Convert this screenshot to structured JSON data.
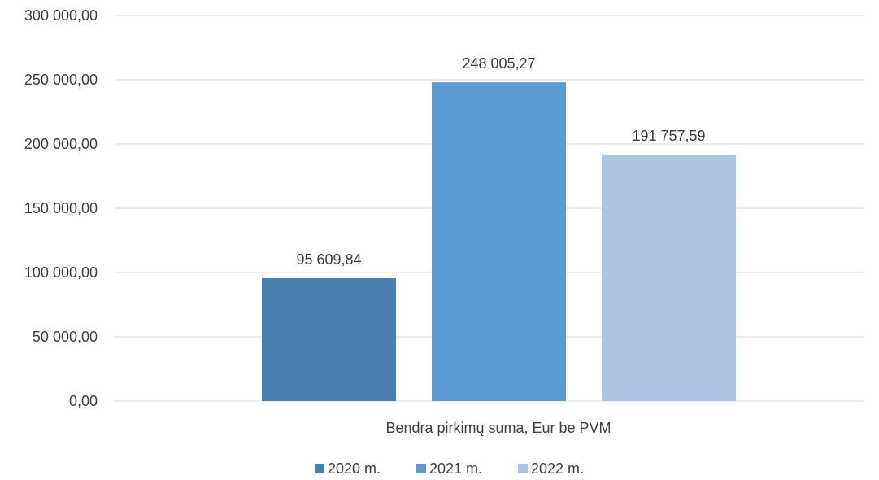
{
  "chart_data": {
    "type": "bar",
    "categories": [
      "Bendra pirkimų suma, Eur be PVM"
    ],
    "series": [
      {
        "name": "2020 m.",
        "values": [
          95609.84
        ],
        "label": "95 609,84",
        "color": "#4a7eb0"
      },
      {
        "name": "2021 m.",
        "values": [
          248005.27
        ],
        "label": "248 005,27",
        "color": "#5b9bd5"
      },
      {
        "name": "2022 m.",
        "values": [
          191757.59
        ],
        "label": "191 757,59",
        "color": "#aec6e5"
      }
    ],
    "ylim": [
      0,
      300000
    ],
    "ytick_step": 50000,
    "yticks": [
      "0,00",
      "50 000,00",
      "100 000,00",
      "150 000,00",
      "200 000,00",
      "250 000,00",
      "300 000,00"
    ],
    "title": "",
    "xlabel": "",
    "ylabel": "",
    "grid": true,
    "legend_position": "bottom"
  }
}
